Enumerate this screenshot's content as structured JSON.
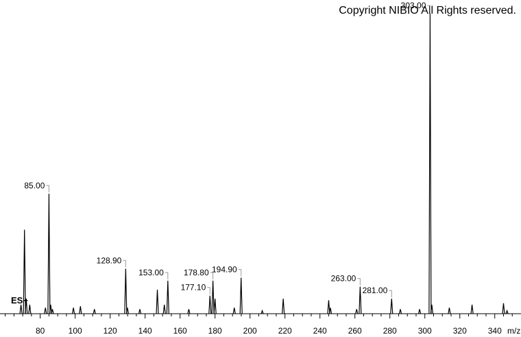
{
  "chart_data": {
    "type": "spectrum",
    "title": "Copyright NIBIO All Rights reserved.",
    "mode_label": "ES+",
    "x_label": "m/z",
    "x": [
      69,
      71,
      72,
      74,
      83,
      85,
      86,
      87,
      99,
      103,
      111,
      128.9,
      129.9,
      137,
      147,
      151,
      153,
      165,
      177.1,
      178.8,
      180,
      191,
      194.9,
      207,
      219,
      245,
      246,
      261,
      263,
      281,
      286,
      297,
      303,
      304,
      314,
      327,
      345,
      347
    ],
    "values": [
      3,
      28,
      5,
      3,
      2,
      40,
      3,
      1.5,
      2,
      2.5,
      1.5,
      15,
      2,
      1.5,
      8,
      3,
      11,
      1.5,
      6,
      11,
      5,
      2,
      12,
      1,
      5,
      4.5,
      2,
      1.5,
      9,
      5,
      1.5,
      1.5,
      100,
      3,
      2,
      3,
      3.5,
      1
    ],
    "x_labels": [
      null,
      null,
      null,
      null,
      null,
      "85.00",
      null,
      null,
      null,
      null,
      null,
      "128.90",
      null,
      null,
      null,
      null,
      "153.00",
      null,
      "177.10",
      "178.80",
      null,
      null,
      "194.90",
      null,
      null,
      null,
      null,
      null,
      "263.00",
      "281.00",
      null,
      null,
      "303.00",
      null,
      null,
      null,
      null,
      null
    ],
    "color": "#000000",
    "xlim": [
      57,
      355
    ],
    "ylim": [
      0,
      100
    ],
    "xticks": [
      80,
      100,
      120,
      140,
      160,
      180,
      200,
      220,
      240,
      260,
      280,
      300,
      320,
      340
    ],
    "xticks_minor": [
      60,
      65,
      70,
      75,
      85,
      90,
      95,
      105,
      110,
      115,
      125,
      130,
      135,
      145,
      150,
      155,
      165,
      170,
      175,
      185,
      190,
      195,
      205,
      210,
      215,
      225,
      230,
      235,
      245,
      250,
      255,
      265,
      270,
      275,
      285,
      290,
      295,
      305,
      310,
      315,
      325,
      330,
      335,
      345,
      350
    ]
  }
}
